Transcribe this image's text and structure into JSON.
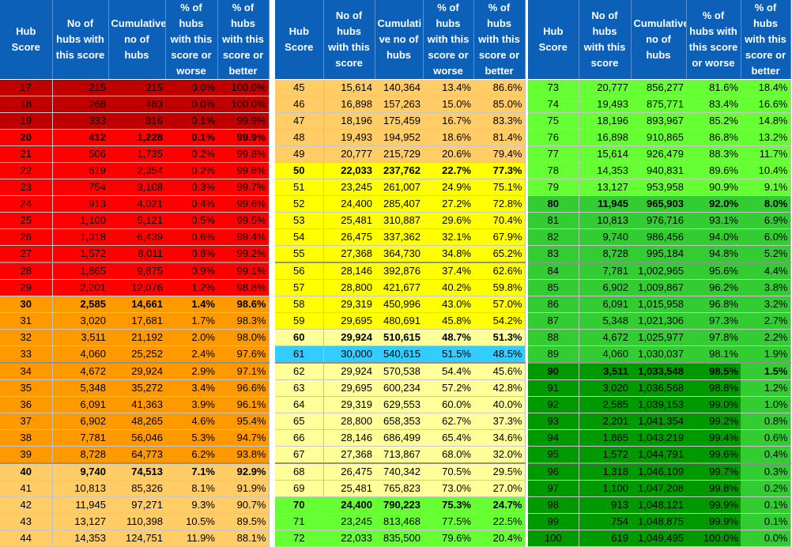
{
  "headers": [
    "Hub Score",
    "No of hubs with this score",
    "Cumulative no of hubs",
    "% of hubs with this score or worse",
    "% of hubs with this score or better"
  ],
  "headers_mid": [
    "Hub Score",
    "No of hubs with this score",
    "Cumulati ve no of hubs",
    "% of hubs with this score or worse",
    "% of hubs with this score or better"
  ],
  "colors": {
    "header": "#0d60b8",
    "dark_red": "#c00000",
    "red": "#ff0000",
    "orange": "#ff9900",
    "light_orange": "#ffcc66",
    "yellow": "#ffff00",
    "light_yellow": "#ffff99",
    "blue": "#33ccff",
    "light_green": "#66ff33",
    "mid_green": "#33cc33",
    "dark_green": "#009900"
  },
  "columns": [
    [
      {
        "score": "17",
        "hubs": "215",
        "cum": "215",
        "worse": "0.0%",
        "better": "100.0%",
        "color": "dark_red"
      },
      {
        "score": "18",
        "hubs": "268",
        "cum": "483",
        "worse": "0.0%",
        "better": "100.0%",
        "color": "dark_red"
      },
      {
        "score": "19",
        "hubs": "333",
        "cum": "816",
        "worse": "0.1%",
        "better": "99.9%",
        "color": "dark_red"
      },
      {
        "score": "20",
        "hubs": "412",
        "cum": "1,228",
        "worse": "0.1%",
        "better": "99.9%",
        "color": "red",
        "bold": true
      },
      {
        "score": "21",
        "hubs": "506",
        "cum": "1,735",
        "worse": "0.2%",
        "better": "99.8%",
        "color": "red"
      },
      {
        "score": "22",
        "hubs": "619",
        "cum": "2,354",
        "worse": "0.2%",
        "better": "99.8%",
        "color": "red"
      },
      {
        "score": "23",
        "hubs": "754",
        "cum": "3,108",
        "worse": "0.3%",
        "better": "99.7%",
        "color": "red"
      },
      {
        "score": "24",
        "hubs": "913",
        "cum": "4,021",
        "worse": "0.4%",
        "better": "99.6%",
        "color": "red"
      },
      {
        "score": "25",
        "hubs": "1,100",
        "cum": "5,121",
        "worse": "0.5%",
        "better": "99.5%",
        "color": "red"
      },
      {
        "score": "26",
        "hubs": "1,318",
        "cum": "6,439",
        "worse": "0.6%",
        "better": "99.4%",
        "color": "red"
      },
      {
        "score": "27",
        "hubs": "1,572",
        "cum": "8,011",
        "worse": "0.8%",
        "better": "99.2%",
        "color": "red",
        "thick": true
      },
      {
        "score": "28",
        "hubs": "1,865",
        "cum": "9,875",
        "worse": "0.9%",
        "better": "99.1%",
        "color": "red"
      },
      {
        "score": "29",
        "hubs": "2,201",
        "cum": "12,076",
        "worse": "1.2%",
        "better": "98.8%",
        "color": "red"
      },
      {
        "score": "30",
        "hubs": "2,585",
        "cum": "14,661",
        "worse": "1.4%",
        "better": "98.6%",
        "color": "orange",
        "bold": true
      },
      {
        "score": "31",
        "hubs": "3,020",
        "cum": "17,681",
        "worse": "1.7%",
        "better": "98.3%",
        "color": "orange"
      },
      {
        "score": "32",
        "hubs": "3,511",
        "cum": "21,192",
        "worse": "2.0%",
        "better": "98.0%",
        "color": "orange"
      },
      {
        "score": "33",
        "hubs": "4,060",
        "cum": "25,252",
        "worse": "2.4%",
        "better": "97.6%",
        "color": "orange",
        "thick": true
      },
      {
        "score": "34",
        "hubs": "4,672",
        "cum": "29,924",
        "worse": "2.9%",
        "better": "97.1%",
        "color": "orange"
      },
      {
        "score": "35",
        "hubs": "5,348",
        "cum": "35,272",
        "worse": "3.4%",
        "better": "96.6%",
        "color": "orange"
      },
      {
        "score": "36",
        "hubs": "6,091",
        "cum": "41,363",
        "worse": "3.9%",
        "better": "96.1%",
        "color": "orange"
      },
      {
        "score": "37",
        "hubs": "6,902",
        "cum": "48,265",
        "worse": "4.6%",
        "better": "95.4%",
        "color": "orange"
      },
      {
        "score": "38",
        "hubs": "7,781",
        "cum": "56,046",
        "worse": "5.3%",
        "better": "94.7%",
        "color": "orange"
      },
      {
        "score": "39",
        "hubs": "8,728",
        "cum": "64,773",
        "worse": "6.2%",
        "better": "93.8%",
        "color": "orange",
        "thick": true
      },
      {
        "score": "40",
        "hubs": "9,740",
        "cum": "74,513",
        "worse": "7.1%",
        "better": "92.9%",
        "color": "light_orange",
        "bold": true
      },
      {
        "score": "41",
        "hubs": "10,813",
        "cum": "85,326",
        "worse": "8.1%",
        "better": "91.9%",
        "color": "light_orange"
      },
      {
        "score": "42",
        "hubs": "11,945",
        "cum": "97,271",
        "worse": "9.3%",
        "better": "90.7%",
        "color": "light_orange"
      },
      {
        "score": "43",
        "hubs": "13,127",
        "cum": "110,398",
        "worse": "10.5%",
        "better": "89.5%",
        "color": "light_orange"
      },
      {
        "score": "44",
        "hubs": "14,353",
        "cum": "124,751",
        "worse": "11.9%",
        "better": "88.1%",
        "color": "light_orange"
      }
    ],
    [
      {
        "score": "45",
        "hubs": "15,614",
        "cum": "140,364",
        "worse": "13.4%",
        "better": "86.6%",
        "color": "light_orange"
      },
      {
        "score": "46",
        "hubs": "16,898",
        "cum": "157,263",
        "worse": "15.0%",
        "better": "85.0%",
        "color": "light_orange"
      },
      {
        "score": "47",
        "hubs": "18,196",
        "cum": "175,459",
        "worse": "16.7%",
        "better": "83.3%",
        "color": "light_orange"
      },
      {
        "score": "48",
        "hubs": "19,493",
        "cum": "194,952",
        "worse": "18.6%",
        "better": "81.4%",
        "color": "light_orange"
      },
      {
        "score": "49",
        "hubs": "20,777",
        "cum": "215,729",
        "worse": "20.6%",
        "better": "79.4%",
        "color": "light_orange"
      },
      {
        "score": "50",
        "hubs": "22,033",
        "cum": "237,762",
        "worse": "22.7%",
        "better": "77.3%",
        "color": "yellow",
        "bold": true
      },
      {
        "score": "51",
        "hubs": "23,245",
        "cum": "261,007",
        "worse": "24.9%",
        "better": "75.1%",
        "color": "yellow"
      },
      {
        "score": "52",
        "hubs": "24,400",
        "cum": "285,407",
        "worse": "27.2%",
        "better": "72.8%",
        "color": "yellow"
      },
      {
        "score": "53",
        "hubs": "25,481",
        "cum": "310,887",
        "worse": "29.6%",
        "better": "70.4%",
        "color": "yellow"
      },
      {
        "score": "54",
        "hubs": "26,475",
        "cum": "337,362",
        "worse": "32.1%",
        "better": "67.9%",
        "color": "yellow"
      },
      {
        "score": "55",
        "hubs": "27,368",
        "cum": "364,730",
        "worse": "34.8%",
        "better": "65.2%",
        "color": "yellow",
        "thick": true
      },
      {
        "score": "56",
        "hubs": "28,146",
        "cum": "392,876",
        "worse": "37.4%",
        "better": "62.6%",
        "color": "yellow"
      },
      {
        "score": "57",
        "hubs": "28,800",
        "cum": "421,677",
        "worse": "40.2%",
        "better": "59.8%",
        "color": "yellow"
      },
      {
        "score": "58",
        "hubs": "29,319",
        "cum": "450,996",
        "worse": "43.0%",
        "better": "57.0%",
        "color": "yellow"
      },
      {
        "score": "59",
        "hubs": "29,695",
        "cum": "480,691",
        "worse": "45.8%",
        "better": "54.2%",
        "color": "yellow"
      },
      {
        "score": "60",
        "hubs": "29,924",
        "cum": "510,615",
        "worse": "48.7%",
        "better": "51.3%",
        "color": "light_yellow",
        "bold": true
      },
      {
        "score": "61",
        "hubs": "30,000",
        "cum": "540,615",
        "worse": "51.5%",
        "better": "48.5%",
        "color": "blue",
        "thick": true
      },
      {
        "score": "62",
        "hubs": "29,924",
        "cum": "570,538",
        "worse": "54.4%",
        "better": "45.6%",
        "color": "light_yellow"
      },
      {
        "score": "63",
        "hubs": "29,695",
        "cum": "600,234",
        "worse": "57.2%",
        "better": "42.8%",
        "color": "light_yellow"
      },
      {
        "score": "64",
        "hubs": "29,319",
        "cum": "629,553",
        "worse": "60.0%",
        "better": "40.0%",
        "color": "light_yellow"
      },
      {
        "score": "65",
        "hubs": "28,800",
        "cum": "658,353",
        "worse": "62.7%",
        "better": "37.3%",
        "color": "light_yellow"
      },
      {
        "score": "66",
        "hubs": "28,146",
        "cum": "686,499",
        "worse": "65.4%",
        "better": "34.6%",
        "color": "light_yellow"
      },
      {
        "score": "67",
        "hubs": "27,368",
        "cum": "713,867",
        "worse": "68.0%",
        "better": "32.0%",
        "color": "light_yellow",
        "thick": true
      },
      {
        "score": "68",
        "hubs": "26,475",
        "cum": "740,342",
        "worse": "70.5%",
        "better": "29.5%",
        "color": "light_yellow"
      },
      {
        "score": "69",
        "hubs": "25,481",
        "cum": "765,823",
        "worse": "73.0%",
        "better": "27.0%",
        "color": "light_yellow"
      },
      {
        "score": "70",
        "hubs": "24,400",
        "cum": "790,223",
        "worse": "75.3%",
        "better": "24.7%",
        "color": "light_green",
        "bold": true
      },
      {
        "score": "71",
        "hubs": "23,245",
        "cum": "813,468",
        "worse": "77.5%",
        "better": "22.5%",
        "color": "light_green"
      },
      {
        "score": "72",
        "hubs": "22,033",
        "cum": "835,500",
        "worse": "79.6%",
        "better": "20.4%",
        "color": "light_green"
      }
    ],
    [
      {
        "score": "73",
        "hubs": "20,777",
        "cum": "856,277",
        "worse": "81.6%",
        "better": "18.4%",
        "color": "light_green"
      },
      {
        "score": "74",
        "hubs": "19,493",
        "cum": "875,771",
        "worse": "83.4%",
        "better": "16.6%",
        "color": "light_green"
      },
      {
        "score": "75",
        "hubs": "18,196",
        "cum": "893,967",
        "worse": "85.2%",
        "better": "14.8%",
        "color": "light_green"
      },
      {
        "score": "76",
        "hubs": "16,898",
        "cum": "910,865",
        "worse": "86.8%",
        "better": "13.2%",
        "color": "light_green"
      },
      {
        "score": "77",
        "hubs": "15,614",
        "cum": "926,479",
        "worse": "88.3%",
        "better": "11.7%",
        "color": "light_green"
      },
      {
        "score": "78",
        "hubs": "14,353",
        "cum": "940,831",
        "worse": "89.6%",
        "better": "10.4%",
        "color": "light_green"
      },
      {
        "score": "79",
        "hubs": "13,127",
        "cum": "953,958",
        "worse": "90.9%",
        "better": "9.1%",
        "color": "light_green"
      },
      {
        "score": "80",
        "hubs": "11,945",
        "cum": "965,903",
        "worse": "92.0%",
        "better": "8.0%",
        "color": "mid_green",
        "bold": true
      },
      {
        "score": "81",
        "hubs": "10,813",
        "cum": "976,716",
        "worse": "93.1%",
        "better": "6.9%",
        "color": "mid_green"
      },
      {
        "score": "82",
        "hubs": "9,740",
        "cum": "986,456",
        "worse": "94.0%",
        "better": "6.0%",
        "color": "mid_green"
      },
      {
        "score": "83",
        "hubs": "8,728",
        "cum": "995,184",
        "worse": "94.8%",
        "better": "5.2%",
        "color": "mid_green",
        "thick": true
      },
      {
        "score": "84",
        "hubs": "7,781",
        "cum": "1,002,965",
        "worse": "95.6%",
        "better": "4.4%",
        "color": "mid_green"
      },
      {
        "score": "85",
        "hubs": "6,902",
        "cum": "1,009,867",
        "worse": "96.2%",
        "better": "3.8%",
        "color": "mid_green"
      },
      {
        "score": "86",
        "hubs": "6,091",
        "cum": "1,015,958",
        "worse": "96.8%",
        "better": "3.2%",
        "color": "mid_green"
      },
      {
        "score": "87",
        "hubs": "5,348",
        "cum": "1,021,306",
        "worse": "97.3%",
        "better": "2.7%",
        "color": "mid_green"
      },
      {
        "score": "88",
        "hubs": "4,672",
        "cum": "1,025,977",
        "worse": "97.8%",
        "better": "2.2%",
        "color": "mid_green"
      },
      {
        "score": "89",
        "hubs": "4,060",
        "cum": "1,030,037",
        "worse": "98.1%",
        "better": "1.9%",
        "color": "mid_green",
        "thick": true
      },
      {
        "score": "90",
        "hubs": "3,511",
        "cum": "1,033,548",
        "worse": "98.5%",
        "better": "1.5%",
        "color": "dark_green",
        "bold": true
      },
      {
        "score": "91",
        "hubs": "3,020",
        "cum": "1,036,568",
        "worse": "98.8%",
        "better": "1.2%",
        "color": "dark_green"
      },
      {
        "score": "92",
        "hubs": "2,585",
        "cum": "1,039,153",
        "worse": "99.0%",
        "better": "1.0%",
        "color": "dark_green"
      },
      {
        "score": "93",
        "hubs": "2,201",
        "cum": "1,041,354",
        "worse": "99.2%",
        "better": "0.8%",
        "color": "dark_green"
      },
      {
        "score": "94",
        "hubs": "1,865",
        "cum": "1,043,219",
        "worse": "99.4%",
        "better": "0.6%",
        "color": "dark_green"
      },
      {
        "score": "95",
        "hubs": "1,572",
        "cum": "1,044,791",
        "worse": "99.6%",
        "better": "0.4%",
        "color": "dark_green",
        "thick": true
      },
      {
        "score": "96",
        "hubs": "1,318",
        "cum": "1,046,109",
        "worse": "99.7%",
        "better": "0.3%",
        "color": "dark_green"
      },
      {
        "score": "97",
        "hubs": "1,100",
        "cum": "1,047,208",
        "worse": "99.8%",
        "better": "0.2%",
        "color": "dark_green"
      },
      {
        "score": "98",
        "hubs": "913",
        "cum": "1,048,121",
        "worse": "99.9%",
        "better": "0.1%",
        "color": "dark_green"
      },
      {
        "score": "99",
        "hubs": "754",
        "cum": "1,048,875",
        "worse": "99.9%",
        "better": "0.1%",
        "color": "dark_green"
      },
      {
        "score": "100",
        "hubs": "619",
        "cum": "1,049,495",
        "worse": "100.0%",
        "better": "0.0%",
        "color": "dark_green"
      }
    ]
  ]
}
